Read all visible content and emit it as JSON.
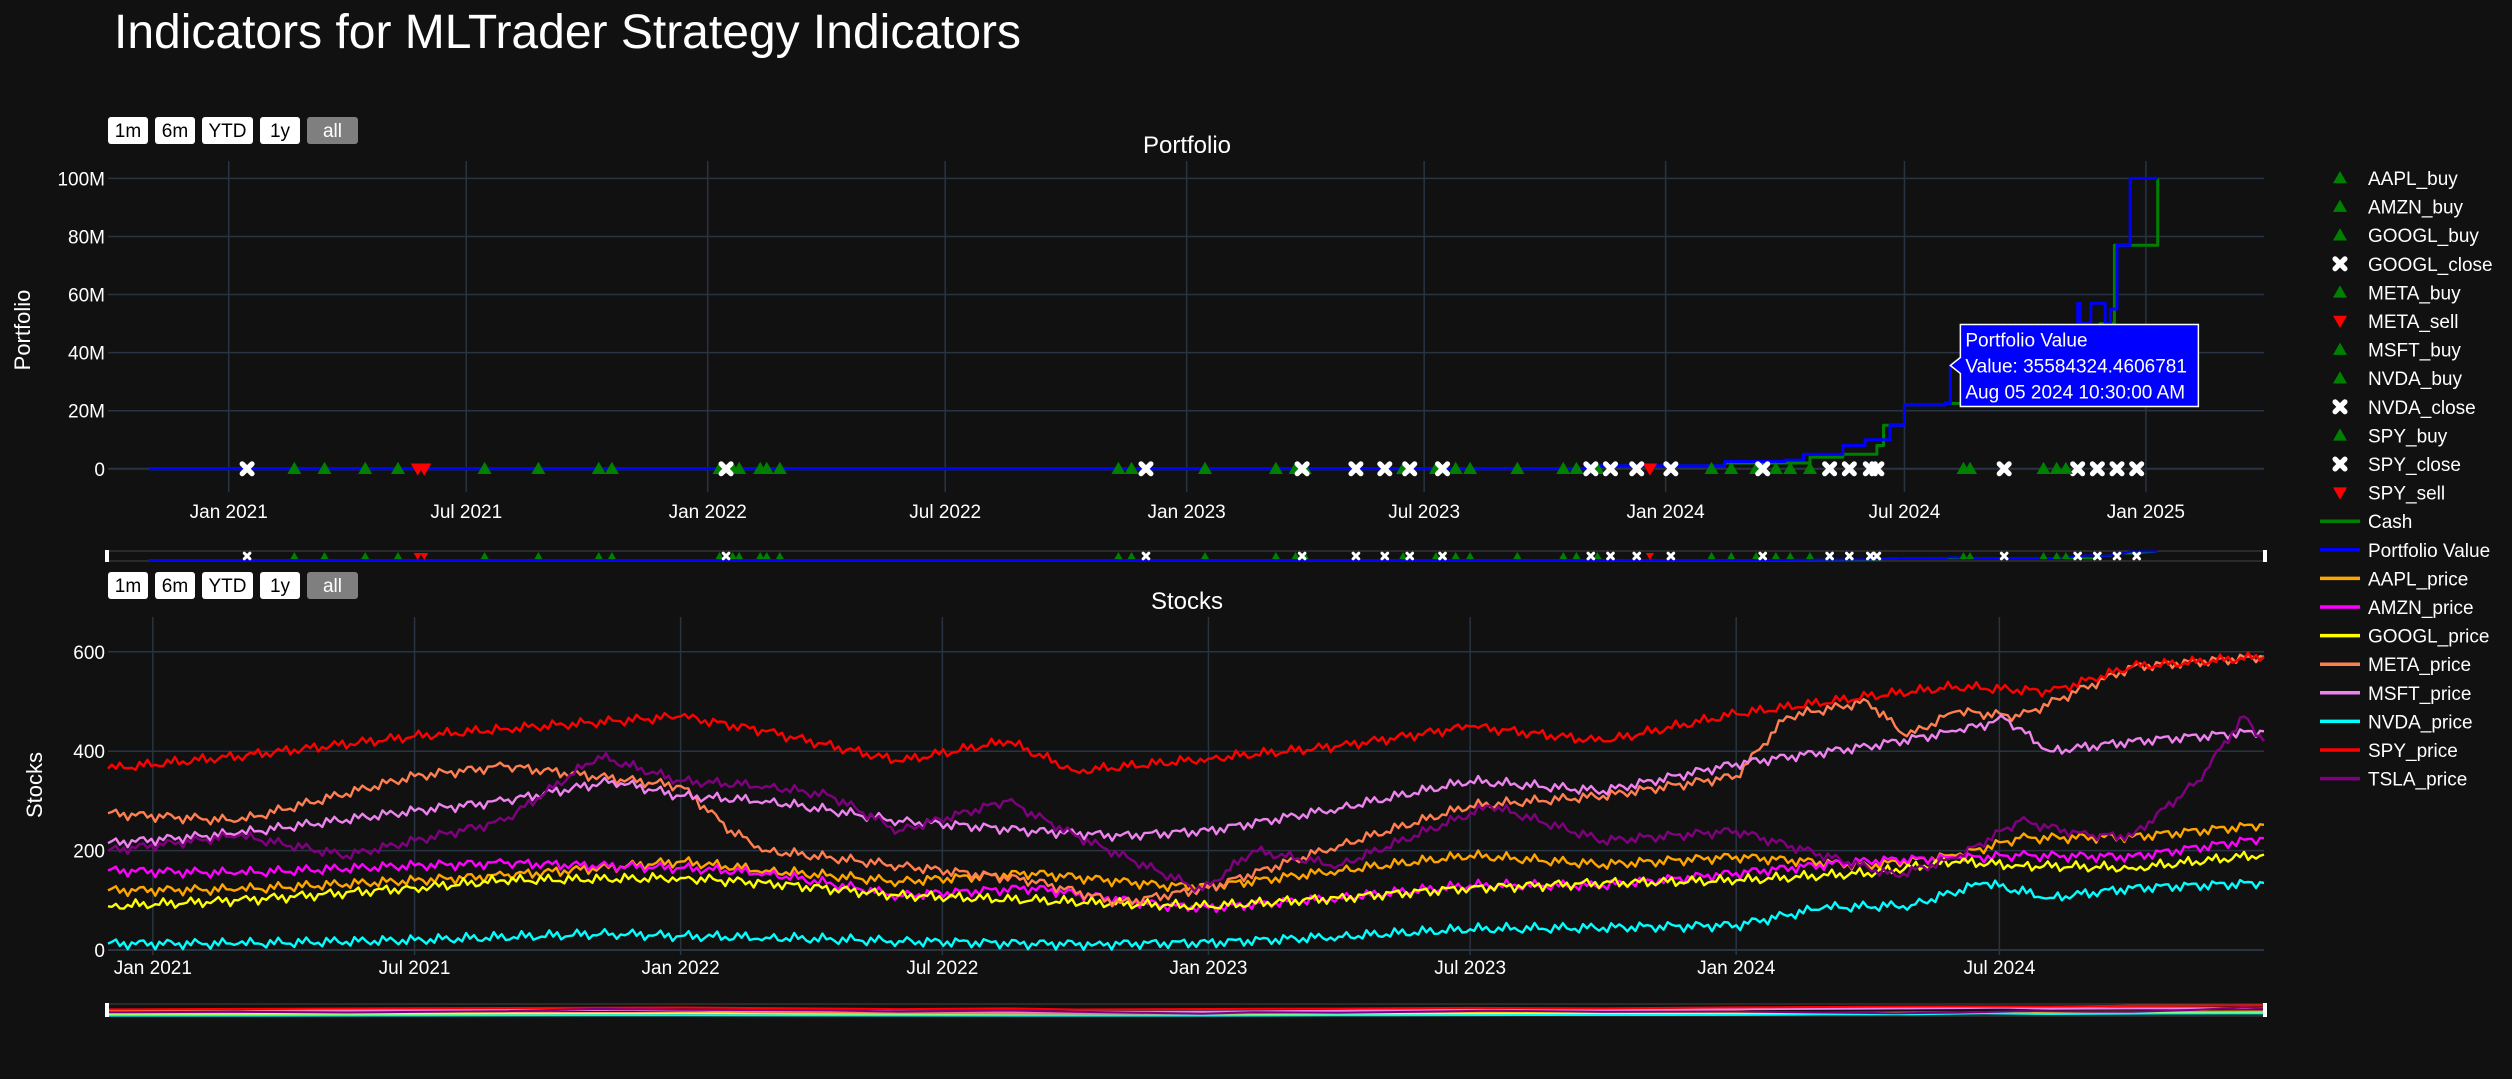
{
  "page_title": "Indicators for MLTrader Strategy Indicators",
  "range_buttons": [
    "1m",
    "6m",
    "YTD",
    "1y",
    "all"
  ],
  "active_range": "all",
  "colors": {
    "background": "#111111",
    "grid": "#283442",
    "text": "#ffffff",
    "cash": "#008000",
    "portfolio": "#0000ff",
    "buy": "#008000",
    "sell": "#ff0000",
    "close": "#ffffff",
    "AAPL_price": "#ffa500",
    "AMZN_price": "#ff00ff",
    "GOOGL_price": "#ffff00",
    "META_price": "#ff7f50",
    "MSFT_price": "#ee82ee",
    "NVDA_price": "#00ffff",
    "SPY_price": "#ff0000",
    "TSLA_price": "#800080"
  },
  "legend": [
    {
      "label": "AAPL_buy",
      "kind": "buy",
      "color": "#008000"
    },
    {
      "label": "AMZN_buy",
      "kind": "buy",
      "color": "#008000"
    },
    {
      "label": "GOOGL_buy",
      "kind": "buy",
      "color": "#008000"
    },
    {
      "label": "GOOGL_close",
      "kind": "close",
      "color": "#ffffff"
    },
    {
      "label": "META_buy",
      "kind": "buy",
      "color": "#008000"
    },
    {
      "label": "META_sell",
      "kind": "sell",
      "color": "#ff0000"
    },
    {
      "label": "MSFT_buy",
      "kind": "buy",
      "color": "#008000"
    },
    {
      "label": "NVDA_buy",
      "kind": "buy",
      "color": "#008000"
    },
    {
      "label": "NVDA_close",
      "kind": "close",
      "color": "#ffffff"
    },
    {
      "label": "SPY_buy",
      "kind": "buy",
      "color": "#008000"
    },
    {
      "label": "SPY_close",
      "kind": "close",
      "color": "#ffffff"
    },
    {
      "label": "SPY_sell",
      "kind": "sell",
      "color": "#ff0000"
    },
    {
      "label": "Cash",
      "kind": "line",
      "color": "#008000"
    },
    {
      "label": "Portfolio Value",
      "kind": "line",
      "color": "#0000ff"
    },
    {
      "label": "AAPL_price",
      "kind": "line",
      "color": "#ffa500"
    },
    {
      "label": "AMZN_price",
      "kind": "line",
      "color": "#ff00ff"
    },
    {
      "label": "GOOGL_price",
      "kind": "line",
      "color": "#ffff00"
    },
    {
      "label": "META_price",
      "kind": "line",
      "color": "#ff7f50"
    },
    {
      "label": "MSFT_price",
      "kind": "line",
      "color": "#ee82ee"
    },
    {
      "label": "NVDA_price",
      "kind": "line",
      "color": "#00ffff"
    },
    {
      "label": "SPY_price",
      "kind": "line",
      "color": "#ff0000"
    },
    {
      "label": "TSLA_price",
      "kind": "line",
      "color": "#800080"
    }
  ],
  "tooltip": {
    "title": "Portfolio Value",
    "value_line": "Value: 35584324.4606781",
    "date_line": "Aug 05 2024 10:30:00 AM",
    "x": "2024-08-05",
    "y": 35584324.46
  },
  "chart_data": [
    {
      "type": "line",
      "title": "Portfolio",
      "ylabel": "Portfolio",
      "xlim": [
        "2020-10-01",
        "2025-04-01"
      ],
      "ylim": [
        -8000000,
        106000000
      ],
      "yticks": [
        0,
        20000000,
        40000000,
        60000000,
        80000000,
        100000000
      ],
      "ytick_labels": [
        "0",
        "20M",
        "40M",
        "60M",
        "80M",
        "100M"
      ],
      "xticks": [
        "2021-01-01",
        "2021-07-01",
        "2022-01-01",
        "2022-07-01",
        "2023-01-01",
        "2023-07-01",
        "2024-01-01",
        "2024-07-01",
        "2025-01-01"
      ],
      "xtick_labels": [
        "Jan 2021",
        "Jul 2021",
        "Jan 2022",
        "Jul 2022",
        "Jan 2023",
        "Jul 2023",
        "Jan 2024",
        "Jul 2024",
        "Jan 2025"
      ],
      "grid": true,
      "series": [
        {
          "name": "Cash",
          "color": "#008000",
          "x": [
            "2020-11-01",
            "2023-06-01",
            "2023-11-01",
            "2024-02-15",
            "2024-04-20",
            "2024-05-15",
            "2024-06-10",
            "2024-06-15",
            "2024-07-01",
            "2024-08-01",
            "2024-09-15",
            "2024-11-01",
            "2024-11-25",
            "2024-11-27",
            "2024-12-05",
            "2024-12-08",
            "2024-12-20",
            "2025-01-10"
          ],
          "y": [
            0,
            0,
            1000000,
            2000000,
            4000000,
            5000000,
            8000000,
            15000000,
            22000000,
            22500000,
            23000000,
            23000000,
            23500000,
            50000000,
            50000000,
            77000000,
            77000000,
            100000000
          ]
        },
        {
          "name": "Portfolio Value",
          "color": "#0000ff",
          "x": [
            "2020-11-01",
            "2023-06-01",
            "2023-11-01",
            "2024-02-15",
            "2024-04-01",
            "2024-04-15",
            "2024-05-15",
            "2024-06-01",
            "2024-06-20",
            "2024-07-01",
            "2024-08-01",
            "2024-08-05",
            "2024-08-20",
            "2024-09-15",
            "2024-11-01",
            "2024-11-10",
            "2024-11-12",
            "2024-11-20",
            "2024-11-25",
            "2024-12-01",
            "2024-12-05",
            "2024-12-10",
            "2024-12-15",
            "2024-12-20",
            "2025-01-05",
            "2025-01-10"
          ],
          "y": [
            0,
            0,
            1000000,
            2500000,
            3000000,
            5000000,
            8000000,
            10000000,
            15000000,
            22000000,
            22500000,
            35584324,
            23000000,
            23500000,
            23000000,
            57000000,
            50000000,
            57000000,
            57000000,
            50000000,
            55000000,
            77000000,
            77000000,
            100000000,
            100000000,
            100000000
          ]
        }
      ],
      "markers": [
        {
          "name": "AAPL_buy",
          "kind": "buy",
          "color": "#008000",
          "x": [
            "2021-02-20",
            "2021-04-15",
            "2021-08-25",
            "2022-01-20",
            "2023-03-25",
            "2023-07-25",
            "2024-02-05"
          ]
        },
        {
          "name": "AMZN_buy",
          "kind": "buy",
          "color": "#008000",
          "x": [
            "2021-03-15",
            "2021-10-10",
            "2022-01-10",
            "2023-04-01",
            "2023-10-25",
            "2024-02-20"
          ]
        },
        {
          "name": "GOOGL_buy",
          "kind": "buy",
          "color": "#008000",
          "x": [
            "2021-05-10",
            "2022-02-10",
            "2023-06-15",
            "2023-11-10",
            "2024-08-15"
          ]
        },
        {
          "name": "GOOGL_close",
          "kind": "close",
          "color": "#ffffff",
          "x": [
            "2023-06-01",
            "2024-05-05",
            "2024-11-10"
          ]
        },
        {
          "name": "META_buy",
          "kind": "buy",
          "color": "#008000",
          "x": [
            "2021-07-15",
            "2022-02-25",
            "2022-11-10",
            "2023-08-05",
            "2024-03-10",
            "2024-08-20"
          ]
        },
        {
          "name": "META_sell",
          "kind": "sell",
          "color": "#ff0000",
          "x": [
            "2021-05-30",
            "2023-12-20"
          ]
        },
        {
          "name": "MSFT_buy",
          "kind": "buy",
          "color": "#008000",
          "x": [
            "2021-10-20",
            "2022-11-20",
            "2023-03-10",
            "2024-03-25",
            "2024-10-15"
          ]
        },
        {
          "name": "NVDA_buy",
          "kind": "buy",
          "color": "#008000",
          "x": [
            "2022-01-25",
            "2023-01-15",
            "2023-09-10",
            "2024-04-05",
            "2024-10-25"
          ]
        },
        {
          "name": "NVDA_close",
          "kind": "close",
          "color": "#ffffff",
          "x": [
            "2021-01-15",
            "2023-03-30",
            "2023-06-20",
            "2023-11-20",
            "2024-06-10"
          ]
        },
        {
          "name": "SPY_buy",
          "kind": "buy",
          "color": "#008000",
          "x": [
            "2022-02-15",
            "2023-07-10",
            "2023-10-15",
            "2024-04-20",
            "2024-11-01"
          ]
        },
        {
          "name": "SPY_close",
          "kind": "close",
          "color": "#ffffff",
          "x": [
            "2022-01-15",
            "2022-12-01",
            "2023-05-10",
            "2023-07-15",
            "2023-11-05",
            "2023-12-10",
            "2024-01-05",
            "2024-03-15",
            "2024-05-20",
            "2024-06-05",
            "2024-09-15",
            "2024-11-25",
            "2024-12-10",
            "2024-12-25"
          ]
        },
        {
          "name": "SPY_sell",
          "kind": "sell",
          "color": "#ff0000",
          "x": [
            "2021-05-25"
          ]
        }
      ]
    },
    {
      "type": "line",
      "title": "Stocks",
      "ylabel": "Stocks",
      "xlim": [
        "2020-12-01",
        "2024-12-31"
      ],
      "ylim": [
        -10,
        670
      ],
      "yticks": [
        0,
        200,
        400,
        600
      ],
      "ytick_labels": [
        "0",
        "200",
        "400",
        "600"
      ],
      "xticks": [
        "2021-01-01",
        "2021-07-01",
        "2022-01-01",
        "2022-07-01",
        "2023-01-01",
        "2023-07-01",
        "2024-01-01",
        "2024-07-01"
      ],
      "xtick_labels": [
        "Jan 2021",
        "Jul 2021",
        "Jan 2022",
        "Jul 2022",
        "Jan 2023",
        "Jul 2023",
        "Jan 2024",
        "Jul 2024"
      ],
      "grid": true,
      "series": [
        {
          "name": "AAPL_price",
          "color": "#ffa500",
          "x": [
            "2020-12-01",
            "2021-03-01",
            "2021-07-01",
            "2021-09-01",
            "2022-01-01",
            "2022-03-01",
            "2022-06-01",
            "2022-09-01",
            "2022-12-01",
            "2023-01-01",
            "2023-04-01",
            "2023-07-01",
            "2023-10-01",
            "2024-01-01",
            "2024-04-01",
            "2024-06-01",
            "2024-07-15",
            "2024-10-01",
            "2024-12-31"
          ],
          "y": [
            120,
            122,
            140,
            150,
            178,
            160,
            138,
            155,
            130,
            128,
            160,
            190,
            172,
            188,
            170,
            190,
            225,
            228,
            252
          ]
        },
        {
          "name": "AMZN_price",
          "color": "#ff00ff",
          "x": [
            "2020-12-01",
            "2021-03-01",
            "2021-07-01",
            "2021-09-01",
            "2022-01-01",
            "2022-03-01",
            "2022-06-01",
            "2022-09-01",
            "2022-12-01",
            "2023-01-01",
            "2023-04-01",
            "2023-07-01",
            "2023-10-01",
            "2024-01-01",
            "2024-04-01",
            "2024-06-01",
            "2024-07-15",
            "2024-10-01",
            "2024-12-31"
          ],
          "y": [
            160,
            155,
            170,
            175,
            165,
            155,
            110,
            125,
            90,
            85,
            105,
            130,
            130,
            155,
            180,
            185,
            190,
            188,
            225
          ]
        },
        {
          "name": "GOOGL_price",
          "color": "#ffff00",
          "x": [
            "2020-12-01",
            "2021-03-01",
            "2021-07-01",
            "2021-09-01",
            "2022-01-01",
            "2022-03-01",
            "2022-06-01",
            "2022-09-01",
            "2022-12-01",
            "2023-01-01",
            "2023-04-01",
            "2023-07-01",
            "2023-10-01",
            "2024-01-01",
            "2024-04-01",
            "2024-06-01",
            "2024-07-15",
            "2024-10-01",
            "2024-12-31"
          ],
          "y": [
            88,
            100,
            125,
            140,
            145,
            135,
            110,
            100,
            90,
            88,
            105,
            125,
            135,
            140,
            155,
            178,
            170,
            165,
            192
          ]
        },
        {
          "name": "META_price",
          "color": "#ff7f50",
          "x": [
            "2020-12-01",
            "2021-03-01",
            "2021-07-01",
            "2021-09-01",
            "2022-01-01",
            "2022-02-05",
            "2022-03-01",
            "2022-06-01",
            "2022-09-01",
            "2022-11-01",
            "2023-01-01",
            "2023-04-01",
            "2023-07-01",
            "2023-10-01",
            "2024-01-01",
            "2024-02-05",
            "2024-04-01",
            "2024-04-28",
            "2024-06-01",
            "2024-07-15",
            "2024-10-01",
            "2024-12-31"
          ],
          "y": [
            275,
            260,
            350,
            370,
            330,
            240,
            200,
            170,
            140,
            95,
            125,
            210,
            290,
            310,
            350,
            470,
            500,
            430,
            480,
            470,
            570,
            590
          ]
        },
        {
          "name": "MSFT_price",
          "color": "#ee82ee",
          "x": [
            "2020-12-01",
            "2021-03-01",
            "2021-07-01",
            "2021-09-01",
            "2021-11-15",
            "2022-01-01",
            "2022-03-01",
            "2022-06-01",
            "2022-09-01",
            "2022-11-01",
            "2023-01-01",
            "2023-04-01",
            "2023-07-01",
            "2023-10-01",
            "2024-01-01",
            "2024-04-01",
            "2024-06-01",
            "2024-07-05",
            "2024-08-05",
            "2024-10-01",
            "2024-12-31"
          ],
          "y": [
            215,
            235,
            280,
            300,
            340,
            310,
            300,
            260,
            240,
            230,
            240,
            285,
            340,
            320,
            375,
            410,
            440,
            465,
            400,
            420,
            440
          ]
        },
        {
          "name": "NVDA_price",
          "color": "#00ffff",
          "x": [
            "2020-12-01",
            "2021-03-01",
            "2021-07-01",
            "2021-11-15",
            "2022-01-01",
            "2022-03-01",
            "2022-06-01",
            "2022-09-01",
            "2022-10-15",
            "2023-01-01",
            "2023-04-01",
            "2023-07-01",
            "2023-10-01",
            "2024-01-01",
            "2024-03-01",
            "2024-05-01",
            "2024-06-20",
            "2024-08-05",
            "2024-10-01",
            "2024-12-31"
          ],
          "y": [
            13,
            13,
            20,
            33,
            28,
            25,
            18,
            13,
            12,
            15,
            27,
            42,
            45,
            50,
            85,
            90,
            135,
            105,
            125,
            135
          ]
        },
        {
          "name": "SPY_price",
          "color": "#ff0000",
          "x": [
            "2020-12-01",
            "2021-03-01",
            "2021-07-01",
            "2021-09-01",
            "2022-01-01",
            "2022-03-01",
            "2022-06-01",
            "2022-08-15",
            "2022-10-01",
            "2023-01-01",
            "2023-04-01",
            "2023-07-01",
            "2023-10-01",
            "2024-01-01",
            "2024-04-01",
            "2024-06-01",
            "2024-08-05",
            "2024-10-01",
            "2024-12-31"
          ],
          "y": [
            365,
            390,
            430,
            445,
            470,
            440,
            380,
            420,
            360,
            385,
            410,
            450,
            420,
            475,
            510,
            530,
            520,
            570,
            590
          ]
        },
        {
          "name": "TSLA_price",
          "color": "#800080",
          "x": [
            "2020-12-01",
            "2021-03-01",
            "2021-05-15",
            "2021-07-01",
            "2021-09-01",
            "2021-11-05",
            "2022-01-01",
            "2022-03-01",
            "2022-04-15",
            "2022-06-01",
            "2022-08-15",
            "2022-10-01",
            "2022-12-28",
            "2023-02-01",
            "2023-04-01",
            "2023-07-15",
            "2023-10-01",
            "2024-01-01",
            "2024-04-20",
            "2024-06-01",
            "2024-07-15",
            "2024-09-01",
            "2024-10-01",
            "2024-11-15",
            "2024-12-17",
            "2024-12-31"
          ],
          "y": [
            200,
            230,
            190,
            220,
            260,
            390,
            340,
            330,
            310,
            240,
            300,
            230,
            120,
            200,
            170,
            290,
            220,
            240,
            150,
            185,
            260,
            230,
            230,
            340,
            470,
            420
          ]
        }
      ]
    }
  ]
}
